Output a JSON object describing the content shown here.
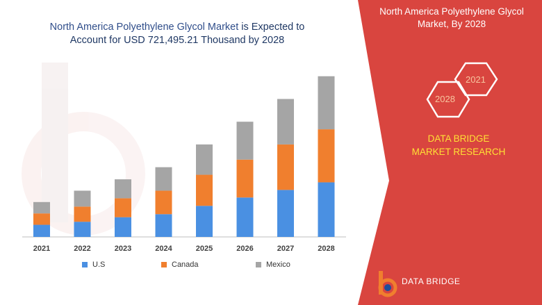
{
  "header": {
    "title_line1_prefix": "North America Polyethylene Glycol Market",
    "title_line1_suffix": " is Expected to",
    "title_line2": "Account for USD 721,495.21 Thousand by 2028"
  },
  "side_panel": {
    "title": "North America Polyethylene Glycol Market, By 2028",
    "hex_year_a": "2028",
    "hex_year_b": "2021",
    "brand": "DATA BRIDGE MARKET RESEARCH",
    "logo_text": "DATA BRIDGE"
  },
  "colors": {
    "panel": "#d9453f",
    "us": "#4a90e2",
    "canada": "#f07f2e",
    "mexico": "#a5a5a5"
  },
  "chart_data": {
    "type": "bar",
    "stacked": true,
    "categories": [
      "2021",
      "2022",
      "2023",
      "2024",
      "2025",
      "2026",
      "2027",
      "2028"
    ],
    "series": [
      {
        "name": "U.S",
        "values": [
          16,
          20,
          26,
          30,
          41,
          52,
          62,
          72
        ]
      },
      {
        "name": "Canada",
        "values": [
          15,
          20,
          25,
          31,
          41,
          50,
          60,
          70
        ]
      },
      {
        "name": "Mexico",
        "values": [
          15,
          21,
          25,
          31,
          40,
          50,
          60,
          70
        ]
      }
    ],
    "ylim": [
      0,
      220
    ],
    "grid": false,
    "legend": "bottom"
  }
}
